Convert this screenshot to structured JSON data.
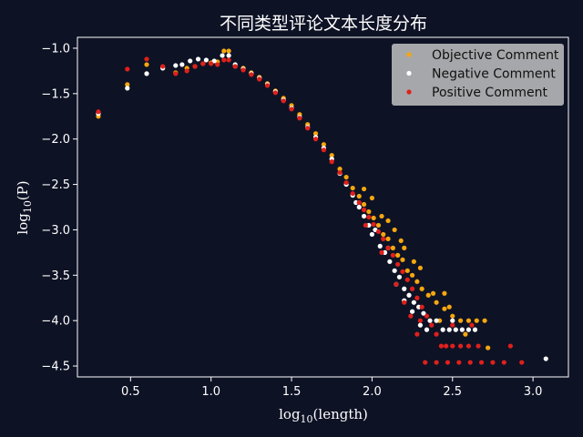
{
  "chart_data": {
    "type": "scatter",
    "title": "不同类型评论文本长度分布",
    "xlabel_main": "log",
    "xlabel_sub": "10",
    "xlabel_rest": "(length)",
    "ylabel_main": "log",
    "ylabel_sub": "10",
    "ylabel_rest": "(P)",
    "xlim": [
      0.17,
      3.22
    ],
    "ylim": [
      -4.62,
      -0.88
    ],
    "x_ticks": [
      0.5,
      1.0,
      1.5,
      2.0,
      2.5,
      3.0
    ],
    "x_tick_labels": [
      "0.5",
      "1.0",
      "1.5",
      "2.0",
      "2.5",
      "3.0"
    ],
    "y_ticks": [
      -1.0,
      -1.5,
      -2.0,
      -2.5,
      -3.0,
      -3.5,
      -4.0,
      -4.5
    ],
    "y_tick_labels": [
      "−1.0",
      "−1.5",
      "−2.0",
      "−2.5",
      "−3.0",
      "−3.5",
      "−4.0",
      "−4.5"
    ],
    "legend_position": "top-right",
    "series": [
      {
        "name": "Objective Comment",
        "color": "#f5a70f",
        "points": [
          [
            0.3,
            -1.75
          ],
          [
            0.48,
            -1.4
          ],
          [
            0.6,
            -1.18
          ],
          [
            0.7,
            -1.21
          ],
          [
            0.78,
            -1.27
          ],
          [
            0.85,
            -1.22
          ],
          [
            0.9,
            -1.2
          ],
          [
            0.95,
            -1.17
          ],
          [
            1.0,
            -1.16
          ],
          [
            1.04,
            -1.15
          ],
          [
            1.08,
            -1.03
          ],
          [
            1.11,
            -1.03
          ],
          [
            1.15,
            -1.2
          ],
          [
            1.2,
            -1.22
          ],
          [
            1.25,
            -1.27
          ],
          [
            1.3,
            -1.32
          ],
          [
            1.35,
            -1.39
          ],
          [
            1.4,
            -1.47
          ],
          [
            1.45,
            -1.55
          ],
          [
            1.5,
            -1.63
          ],
          [
            1.55,
            -1.73
          ],
          [
            1.6,
            -1.84
          ],
          [
            1.65,
            -1.94
          ],
          [
            1.7,
            -2.06
          ],
          [
            1.75,
            -2.18
          ],
          [
            1.8,
            -2.33
          ],
          [
            1.84,
            -2.42
          ],
          [
            1.88,
            -2.54
          ],
          [
            1.92,
            -2.63
          ],
          [
            1.95,
            -2.72
          ],
          [
            1.98,
            -2.8
          ],
          [
            2.01,
            -2.87
          ],
          [
            2.04,
            -2.95
          ],
          [
            2.07,
            -3.05
          ],
          [
            2.1,
            -3.1
          ],
          [
            2.13,
            -3.2
          ],
          [
            2.16,
            -3.28
          ],
          [
            2.19,
            -3.33
          ],
          [
            2.22,
            -3.45
          ],
          [
            2.25,
            -3.5
          ],
          [
            2.28,
            -3.57
          ],
          [
            2.31,
            -3.65
          ],
          [
            2.35,
            -3.72
          ],
          [
            2.4,
            -3.8
          ],
          [
            2.45,
            -3.87
          ],
          [
            2.5,
            -3.95
          ],
          [
            2.55,
            -4.0
          ],
          [
            2.6,
            -4.0
          ],
          [
            2.65,
            -4.0
          ],
          [
            2.7,
            -4.0
          ],
          [
            2.72,
            -4.3
          ],
          [
            2.3,
            -3.42
          ],
          [
            2.38,
            -3.7
          ],
          [
            2.45,
            -3.7
          ],
          [
            2.2,
            -3.2
          ],
          [
            2.1,
            -2.9
          ],
          [
            2.0,
            -2.65
          ],
          [
            1.95,
            -2.55
          ],
          [
            2.14,
            -3.0
          ],
          [
            2.42,
            -4.0
          ],
          [
            2.58,
            -4.15
          ],
          [
            2.48,
            -3.85
          ],
          [
            2.26,
            -3.35
          ],
          [
            2.18,
            -3.12
          ],
          [
            2.06,
            -2.85
          ]
        ]
      },
      {
        "name": "Negative Comment",
        "color": "#ffffff",
        "points": [
          [
            0.3,
            -1.72
          ],
          [
            0.48,
            -1.44
          ],
          [
            0.6,
            -1.28
          ],
          [
            0.7,
            -1.22
          ],
          [
            0.78,
            -1.19
          ],
          [
            0.82,
            -1.18
          ],
          [
            0.87,
            -1.14
          ],
          [
            0.92,
            -1.12
          ],
          [
            0.97,
            -1.13
          ],
          [
            1.02,
            -1.14
          ],
          [
            1.07,
            -1.08
          ],
          [
            1.11,
            -1.08
          ],
          [
            1.15,
            -1.18
          ],
          [
            1.2,
            -1.23
          ],
          [
            1.25,
            -1.28
          ],
          [
            1.3,
            -1.33
          ],
          [
            1.35,
            -1.4
          ],
          [
            1.4,
            -1.48
          ],
          [
            1.45,
            -1.57
          ],
          [
            1.5,
            -1.66
          ],
          [
            1.55,
            -1.76
          ],
          [
            1.6,
            -1.87
          ],
          [
            1.65,
            -1.98
          ],
          [
            1.7,
            -2.1
          ],
          [
            1.75,
            -2.22
          ],
          [
            1.8,
            -2.38
          ],
          [
            1.84,
            -2.5
          ],
          [
            1.88,
            -2.62
          ],
          [
            1.92,
            -2.75
          ],
          [
            1.95,
            -2.85
          ],
          [
            1.98,
            -2.95
          ],
          [
            2.02,
            -3.0
          ],
          [
            2.05,
            -3.18
          ],
          [
            2.08,
            -3.25
          ],
          [
            2.11,
            -3.35
          ],
          [
            2.14,
            -3.45
          ],
          [
            2.17,
            -3.52
          ],
          [
            2.2,
            -3.65
          ],
          [
            2.23,
            -3.72
          ],
          [
            2.26,
            -3.8
          ],
          [
            2.29,
            -3.85
          ],
          [
            2.32,
            -3.92
          ],
          [
            2.36,
            -4.0
          ],
          [
            2.4,
            -4.0
          ],
          [
            2.44,
            -4.1
          ],
          [
            2.48,
            -4.1
          ],
          [
            2.52,
            -4.1
          ],
          [
            2.56,
            -4.1
          ],
          [
            2.6,
            -4.1
          ],
          [
            2.64,
            -4.1
          ],
          [
            2.2,
            -3.78
          ],
          [
            2.25,
            -3.9
          ],
          [
            2.3,
            -4.05
          ],
          [
            3.08,
            -4.42
          ],
          [
            2.1,
            -3.2
          ],
          [
            2.0,
            -3.05
          ],
          [
            1.9,
            -2.7
          ],
          [
            2.15,
            -3.6
          ],
          [
            2.34,
            -4.1
          ],
          [
            2.5,
            -4.0
          ]
        ]
      },
      {
        "name": "Positive Comment",
        "color": "#e0201b",
        "points": [
          [
            0.3,
            -1.7
          ],
          [
            0.48,
            -1.23
          ],
          [
            0.6,
            -1.12
          ],
          [
            0.7,
            -1.2
          ],
          [
            0.78,
            -1.28
          ],
          [
            0.85,
            -1.25
          ],
          [
            0.9,
            -1.2
          ],
          [
            0.95,
            -1.17
          ],
          [
            1.0,
            -1.17
          ],
          [
            1.04,
            -1.18
          ],
          [
            1.08,
            -1.13
          ],
          [
            1.11,
            -1.13
          ],
          [
            1.15,
            -1.2
          ],
          [
            1.2,
            -1.24
          ],
          [
            1.25,
            -1.29
          ],
          [
            1.3,
            -1.34
          ],
          [
            1.35,
            -1.41
          ],
          [
            1.4,
            -1.49
          ],
          [
            1.45,
            -1.58
          ],
          [
            1.5,
            -1.67
          ],
          [
            1.55,
            -1.77
          ],
          [
            1.6,
            -1.88
          ],
          [
            1.65,
            -2.0
          ],
          [
            1.7,
            -2.12
          ],
          [
            1.75,
            -2.25
          ],
          [
            1.8,
            -2.37
          ],
          [
            1.84,
            -2.48
          ],
          [
            1.88,
            -2.6
          ],
          [
            1.92,
            -2.7
          ],
          [
            1.95,
            -2.78
          ],
          [
            1.98,
            -2.86
          ],
          [
            2.01,
            -2.94
          ],
          [
            2.04,
            -3.02
          ],
          [
            2.07,
            -3.1
          ],
          [
            2.1,
            -3.2
          ],
          [
            2.13,
            -3.28
          ],
          [
            2.16,
            -3.38
          ],
          [
            2.19,
            -3.46
          ],
          [
            2.22,
            -3.55
          ],
          [
            2.25,
            -3.65
          ],
          [
            2.28,
            -3.75
          ],
          [
            2.31,
            -3.85
          ],
          [
            2.34,
            -3.95
          ],
          [
            2.37,
            -4.05
          ],
          [
            2.4,
            -4.15
          ],
          [
            2.43,
            -4.28
          ],
          [
            2.46,
            -4.28
          ],
          [
            2.5,
            -4.28
          ],
          [
            2.55,
            -4.28
          ],
          [
            2.6,
            -4.28
          ],
          [
            2.33,
            -4.46
          ],
          [
            2.4,
            -4.46
          ],
          [
            2.47,
            -4.46
          ],
          [
            2.54,
            -4.46
          ],
          [
            2.61,
            -4.46
          ],
          [
            2.68,
            -4.46
          ],
          [
            2.75,
            -4.46
          ],
          [
            2.82,
            -4.46
          ],
          [
            2.93,
            -4.46
          ],
          [
            2.86,
            -4.28
          ],
          [
            2.66,
            -4.28
          ],
          [
            2.28,
            -4.15
          ],
          [
            2.24,
            -3.95
          ],
          [
            2.15,
            -3.6
          ],
          [
            2.06,
            -3.25
          ],
          [
            1.96,
            -2.95
          ],
          [
            2.2,
            -3.8
          ],
          [
            2.3,
            -4.0
          ],
          [
            2.5,
            -4.05
          ],
          [
            2.62,
            -4.05
          ]
        ]
      }
    ]
  }
}
